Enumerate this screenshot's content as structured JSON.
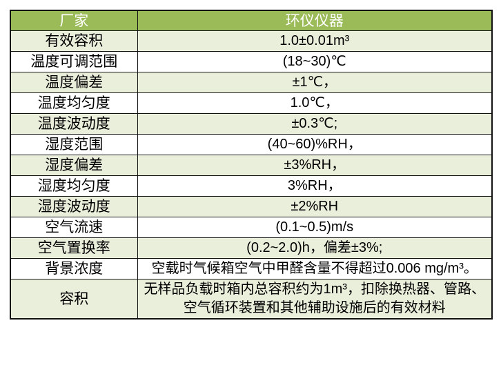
{
  "table": {
    "header": {
      "col1": "厂家",
      "col2": "环仪仪器"
    },
    "rows": [
      {
        "label": "有效容积",
        "value": "1.0±0.01m³"
      },
      {
        "label": "温度可调范围",
        "value": "(18~30)℃"
      },
      {
        "label": "温度偏差",
        "value": "±1℃，"
      },
      {
        "label": "温度均匀度",
        "value": "1.0℃，"
      },
      {
        "label": "温度波动度",
        "value": "±0.3℃;"
      },
      {
        "label": "湿度范围",
        "value": "(40~60)%RH，"
      },
      {
        "label": "湿度偏差",
        "value": "±3%RH，"
      },
      {
        "label": "湿度均匀度",
        "value": "3%RH，"
      },
      {
        "label": "湿度波动度",
        "value": "±2%RH"
      },
      {
        "label": "空气流速",
        "value": "(0.1~0.5)m/s"
      },
      {
        "label": "空气置换率",
        "value": "(0.2~2.0)h，偏差±3%;"
      },
      {
        "label": "背景浓度",
        "value": "空载时气候箱空气中甲醛含量不得超过0.006 mg/m³。"
      },
      {
        "label": "容积",
        "value": "无样品负载时箱内总容积约为1m³，扣除换热器、管路、空气循环装置和其他辅助设施后的有效材料"
      }
    ],
    "colors": {
      "header_bg": "#9BBB59",
      "header_text": "#FFFFFF",
      "band_bg": "#EAEFDB",
      "row_bg": "#FFFFFF",
      "border": "#111111",
      "body_text": "#000000"
    }
  }
}
